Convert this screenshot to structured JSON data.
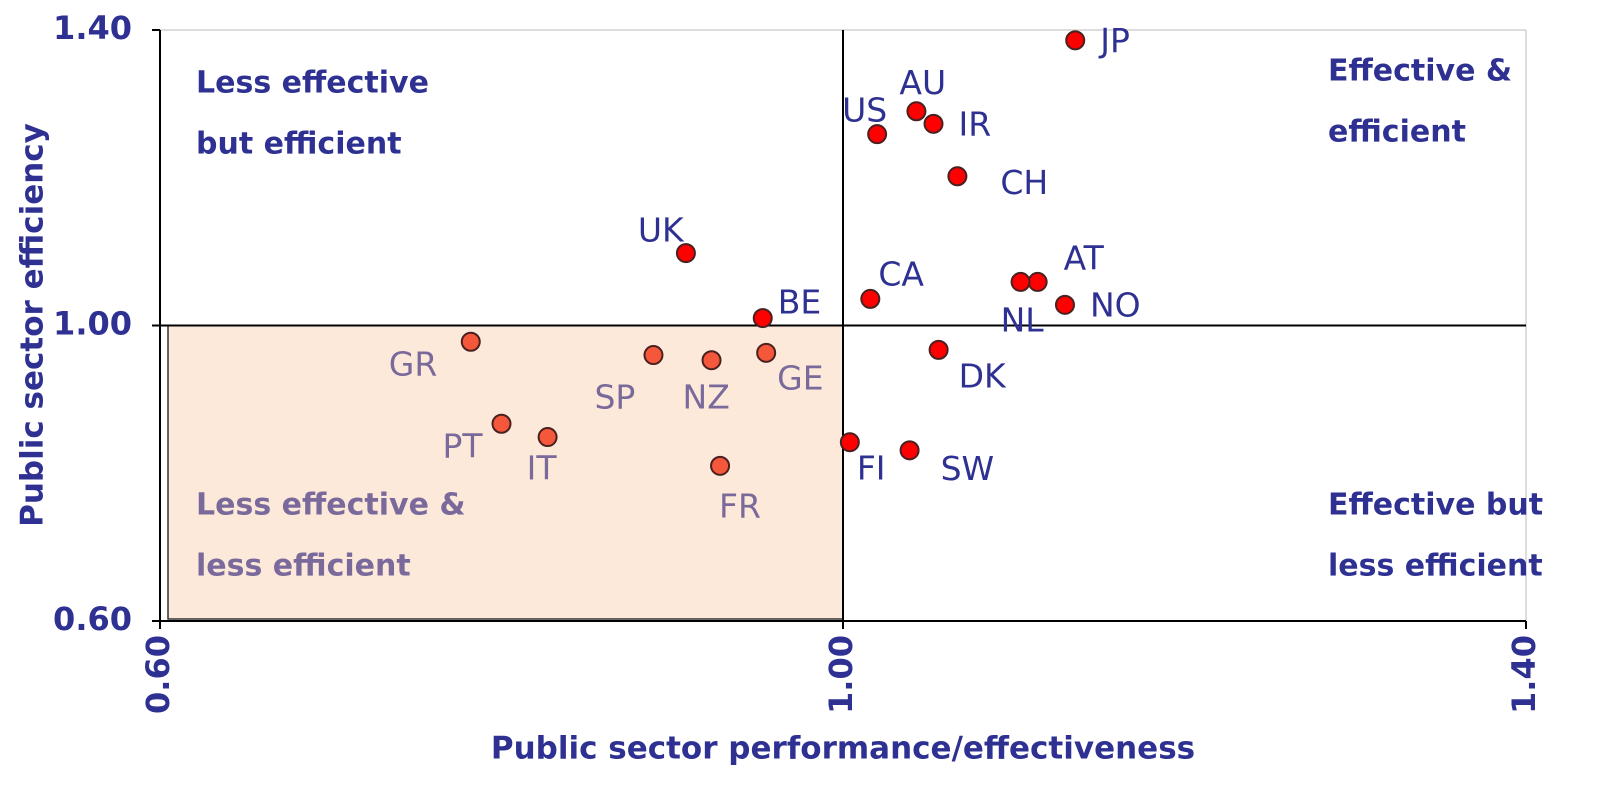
{
  "chart_data": {
    "type": "scatter",
    "xlabel": "Public sector performance/effectiveness",
    "ylabel": "Public sector efficiency",
    "xlim": [
      0.6,
      1.4
    ],
    "ylim": [
      0.6,
      1.4
    ],
    "xticks": [
      {
        "value": 0.6,
        "label": "0.60"
      },
      {
        "value": 1.0,
        "label": "1.00"
      },
      {
        "value": 1.4,
        "label": "1.40"
      }
    ],
    "yticks": [
      {
        "value": 0.6,
        "label": "0.60"
      },
      {
        "value": 1.0,
        "label": "1.00"
      },
      {
        "value": 1.4,
        "label": "1.40"
      }
    ],
    "xref": 1.0,
    "yref": 1.0,
    "color": "#ff0000",
    "lower_left_color": "#f4573a",
    "lower_left_fill": "#fde9d9",
    "label_color": "#2e3192",
    "lower_left_label_color": "#7a6a9c",
    "quadrants": {
      "upper_left": [
        "Less effective",
        "but efficient"
      ],
      "upper_right": [
        "Effective &",
        "efficient"
      ],
      "lower_right": [
        "Effective but",
        "less efficient"
      ],
      "lower_left": [
        "Less effective &",
        "less efficient"
      ]
    },
    "points": [
      {
        "label": "JP",
        "x": 1.136,
        "y": 1.386
      },
      {
        "label": "AU",
        "x": 1.043,
        "y": 1.29
      },
      {
        "label": "IR",
        "x": 1.053,
        "y": 1.273
      },
      {
        "label": "US",
        "x": 1.02,
        "y": 1.259
      },
      {
        "label": "CH",
        "x": 1.067,
        "y": 1.202
      },
      {
        "label": "UK",
        "x": 0.908,
        "y": 1.098
      },
      {
        "label": "CA",
        "x": 1.016,
        "y": 1.036
      },
      {
        "label": "AT",
        "x": 1.114,
        "y": 1.059
      },
      {
        "label": "NL",
        "x": 1.104,
        "y": 1.059
      },
      {
        "label": "NO",
        "x": 1.13,
        "y": 1.028
      },
      {
        "label": "BE",
        "x": 0.953,
        "y": 1.01
      },
      {
        "label": "DK",
        "x": 1.056,
        "y": 0.967
      },
      {
        "label": "GR",
        "x": 0.782,
        "y": 0.978
      },
      {
        "label": "SP",
        "x": 0.889,
        "y": 0.96
      },
      {
        "label": "NZ",
        "x": 0.923,
        "y": 0.953
      },
      {
        "label": "GE",
        "x": 0.955,
        "y": 0.963
      },
      {
        "label": "PT",
        "x": 0.8,
        "y": 0.867
      },
      {
        "label": "IT",
        "x": 0.827,
        "y": 0.849
      },
      {
        "label": "FI",
        "x": 1.004,
        "y": 0.842
      },
      {
        "label": "SW",
        "x": 1.039,
        "y": 0.831
      },
      {
        "label": "FR",
        "x": 0.928,
        "y": 0.81
      }
    ]
  }
}
